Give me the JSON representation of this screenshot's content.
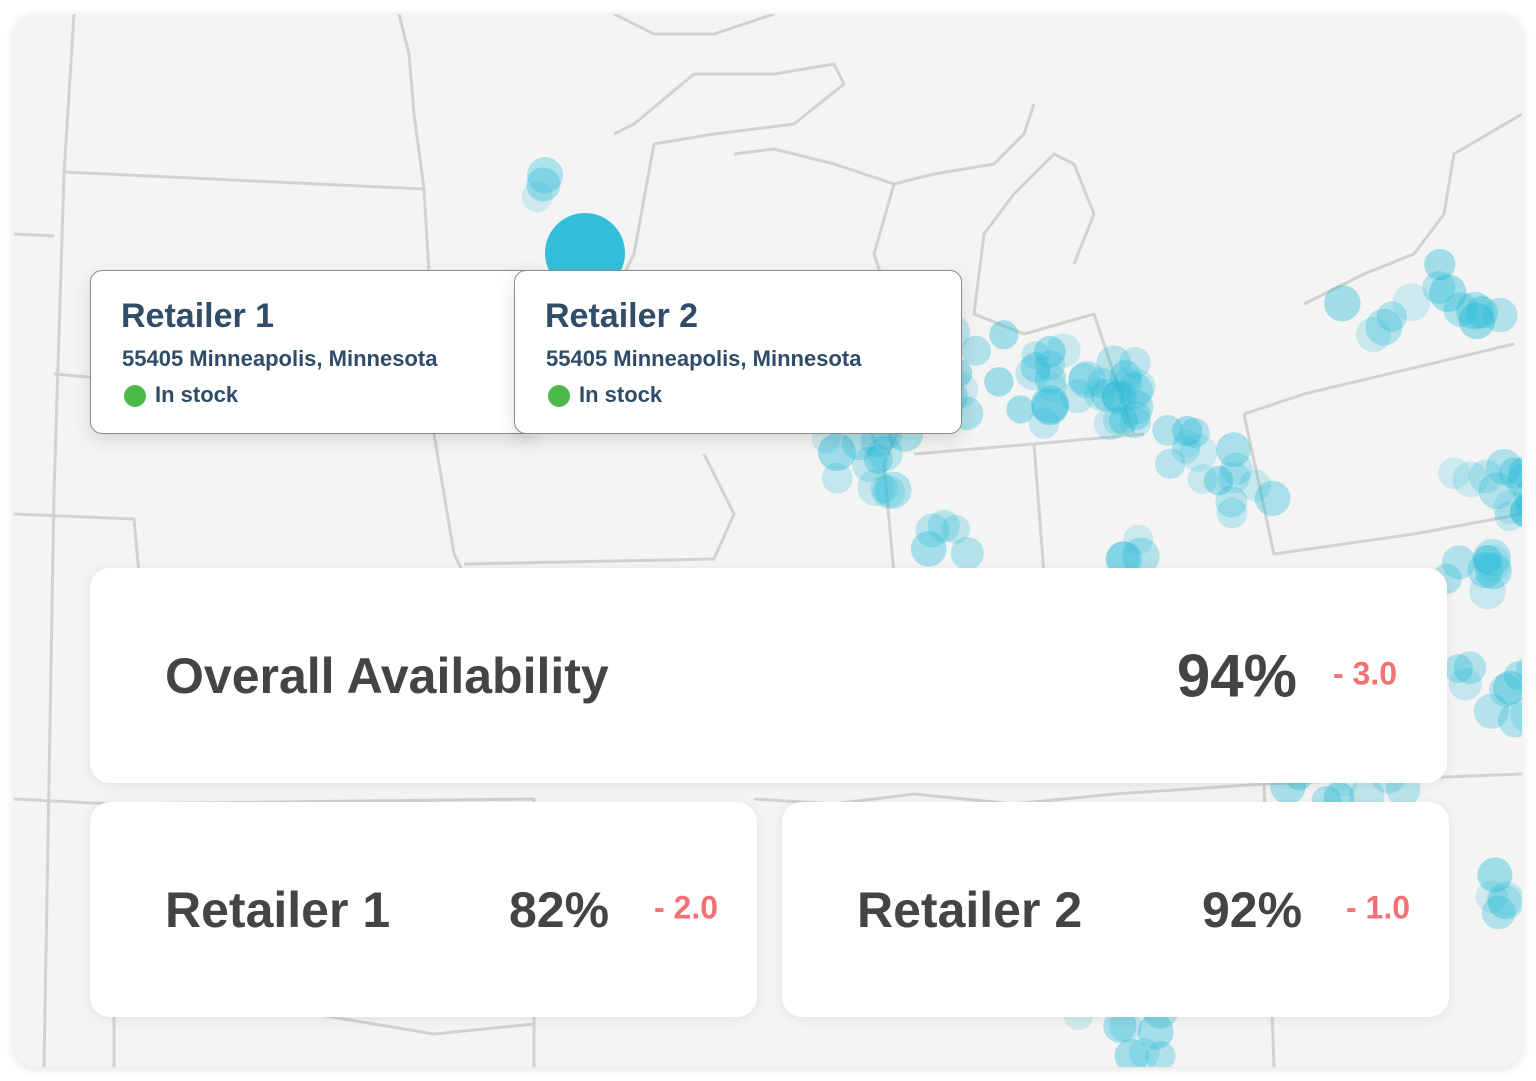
{
  "tooltips": [
    {
      "title": "Retailer 1",
      "address": "55405 Minneapolis, Minnesota",
      "status": "In stock"
    },
    {
      "title": "Retailer 2",
      "address": "55405 Minneapolis, Minnesota",
      "status": "In stock"
    }
  ],
  "summary": {
    "label": "Overall Availability",
    "value": "94%",
    "change": "- 3.0"
  },
  "retailers": [
    {
      "label": "Retailer 1",
      "value": "82%",
      "change": "- 2.0"
    },
    {
      "label": "Retailer 2",
      "value": "92%",
      "change": "- 1.0"
    }
  ]
}
